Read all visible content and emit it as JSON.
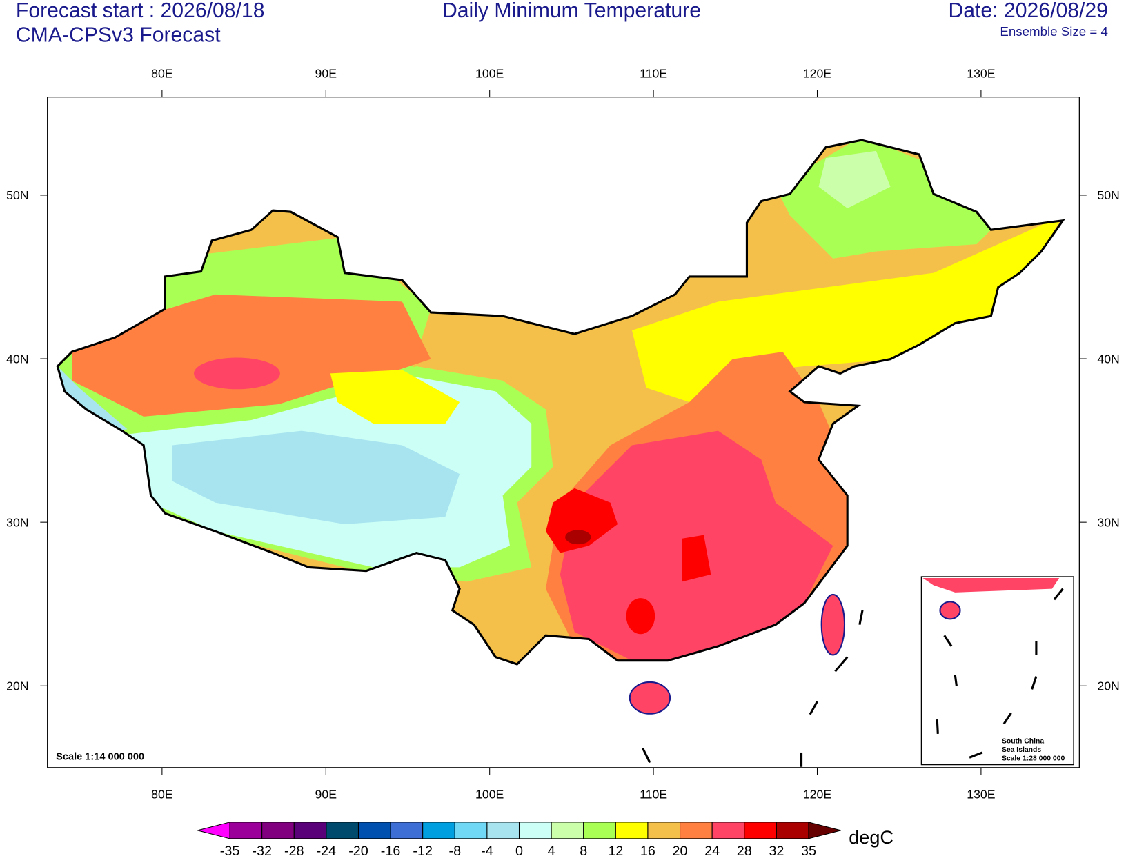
{
  "header": {
    "forecast_start": "Forecast start : 2026/08/18",
    "model": "CMA-CPSv3 Forecast",
    "title": "Daily Minimum Temperature",
    "date": "Date: 2026/08/29",
    "ensemble": "Ensemble Size = 4"
  },
  "map": {
    "xlim": [
      73,
      136
    ],
    "ylim": [
      15,
      56
    ],
    "xticks": [
      {
        "value": 80,
        "label": "80E"
      },
      {
        "value": 90,
        "label": "90E"
      },
      {
        "value": 100,
        "label": "100E"
      },
      {
        "value": 110,
        "label": "110E"
      },
      {
        "value": 120,
        "label": "120E"
      },
      {
        "value": 130,
        "label": "130E"
      }
    ],
    "yticks": [
      {
        "value": 20,
        "label": "20N"
      },
      {
        "value": 30,
        "label": "30N"
      },
      {
        "value": 40,
        "label": "40N"
      },
      {
        "value": 50,
        "label": "50N"
      }
    ],
    "scale": "Scale 1:14 000 000"
  },
  "inset": {
    "lines": [
      "South China",
      "Sea Islands",
      "Scale 1:28 000 000"
    ]
  },
  "colorbar": {
    "units": "degC",
    "levels": [
      -35,
      -32,
      -28,
      -24,
      -20,
      -16,
      -12,
      -8,
      -4,
      0,
      4,
      8,
      12,
      16,
      20,
      24,
      28,
      32,
      35
    ],
    "colors": [
      "#ff00ff",
      "#9b009b",
      "#800080",
      "#5a0078",
      "#004a6e",
      "#0050b0",
      "#3c6ed6",
      "#00a0e0",
      "#70d8f4",
      "#a8e4f0",
      "#ccfff6",
      "#ccffaa",
      "#aaff55",
      "#ffff00",
      "#f5c04a",
      "#ff8040",
      "#ff4466",
      "#ff0000",
      "#aa0000",
      "#660000"
    ]
  }
}
